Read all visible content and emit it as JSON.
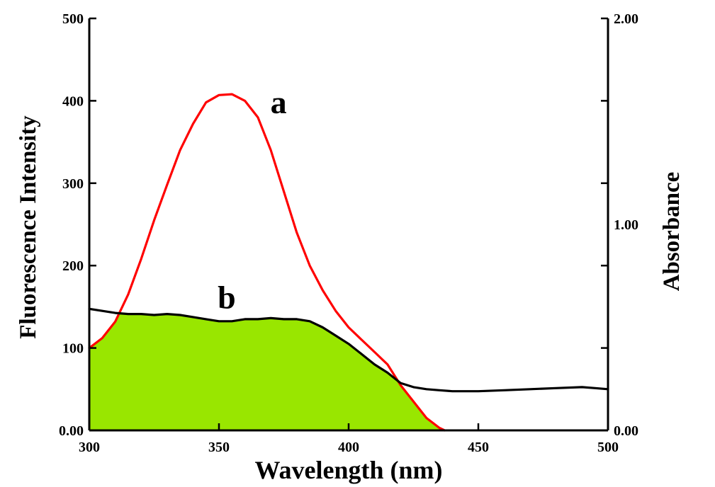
{
  "chart_data": {
    "type": "line",
    "xlabel": "Wavelength  (nm)",
    "ylabel_left": "Fluorescence Intensity",
    "ylabel_right": "Absorbance",
    "xlim": [
      300,
      500
    ],
    "ylim_left": [
      0,
      500
    ],
    "ylim_right": [
      0,
      2
    ],
    "x_ticks": [
      "300",
      "350",
      "400",
      "450",
      "500"
    ],
    "y_left_ticks": [
      "0.00",
      "100",
      "200",
      "300",
      "400",
      "500"
    ],
    "y_right_ticks": [
      "0.00",
      "1.00",
      "2.00"
    ],
    "grid": false,
    "fill_color": "#99e600",
    "series": [
      {
        "name": "a",
        "axis": "left",
        "color": "#ff0000",
        "x": [
          300,
          305,
          310,
          315,
          320,
          325,
          330,
          335,
          340,
          345,
          350,
          355,
          360,
          365,
          370,
          375,
          380,
          385,
          390,
          395,
          400,
          405,
          410,
          415,
          420,
          425,
          430,
          435,
          437
        ],
        "y": [
          100,
          112,
          132,
          165,
          208,
          255,
          298,
          340,
          372,
          398,
          407,
          408,
          400,
          380,
          340,
          290,
          240,
          200,
          170,
          145,
          125,
          110,
          95,
          80,
          55,
          35,
          15,
          3,
          0
        ]
      },
      {
        "name": "b",
        "axis": "right",
        "color": "#000000",
        "x": [
          300,
          305,
          310,
          315,
          320,
          325,
          330,
          335,
          340,
          345,
          350,
          355,
          360,
          365,
          370,
          375,
          380,
          385,
          390,
          395,
          400,
          405,
          410,
          415,
          420,
          425,
          430,
          435,
          440,
          445,
          450,
          460,
          470,
          480,
          490,
          495,
          500
        ],
        "y": [
          0.59,
          0.58,
          0.57,
          0.565,
          0.565,
          0.56,
          0.565,
          0.56,
          0.55,
          0.54,
          0.53,
          0.53,
          0.54,
          0.54,
          0.545,
          0.54,
          0.54,
          0.53,
          0.5,
          0.46,
          0.42,
          0.37,
          0.32,
          0.28,
          0.23,
          0.21,
          0.2,
          0.195,
          0.19,
          0.19,
          0.19,
          0.195,
          0.2,
          0.205,
          0.21,
          0.205,
          0.2
        ]
      }
    ],
    "annotations": [
      {
        "text": "a",
        "x": 373,
        "y_left": 385
      },
      {
        "text": "b",
        "x": 353,
        "y_left": 148
      }
    ]
  }
}
